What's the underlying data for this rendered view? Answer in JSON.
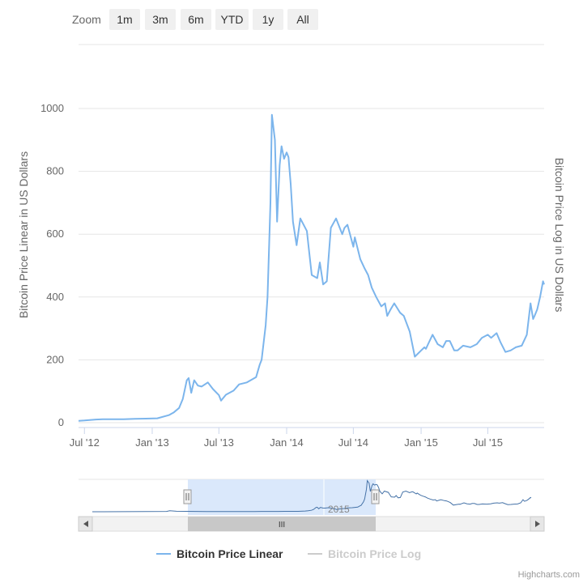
{
  "zoom": {
    "label": "Zoom",
    "buttons": [
      "1m",
      "3m",
      "6m",
      "YTD",
      "1y",
      "All"
    ]
  },
  "credits": "Highcharts.com",
  "colors": {
    "series_linear": "#7cb5ec",
    "series_log": "#cccccc",
    "navigator_mask": "#d6e6fb",
    "grid": "#e6e6e6"
  },
  "chart_data": {
    "type": "line",
    "title": "",
    "xlabel": "",
    "ylabel": "Bitcoin Price Linear in US Dollars",
    "ylabel_right": "Bitcoin Price Log in US Dollars",
    "ylim": [
      0,
      1000
    ],
    "yticks": [
      0,
      200,
      400,
      600,
      800,
      1000
    ],
    "xticks": [
      "Jul '12",
      "Jan '13",
      "Jul '13",
      "Jan '14",
      "Jul '14",
      "Jan '15",
      "Jul '15"
    ],
    "xlim": [
      "2012-06-15",
      "2015-12-01"
    ],
    "grid": true,
    "legend_position": "bottom-center",
    "series": [
      {
        "name": "Bitcoin Price Linear",
        "visible": true,
        "x": [
          "2012-06-15",
          "2012-07-01",
          "2012-08-01",
          "2012-08-20",
          "2012-09-15",
          "2012-10-15",
          "2012-11-15",
          "2012-12-15",
          "2013-01-15",
          "2013-02-15",
          "2013-03-01",
          "2013-03-15",
          "2013-03-25",
          "2013-04-05",
          "2013-04-10",
          "2013-04-17",
          "2013-04-25",
          "2013-05-05",
          "2013-05-15",
          "2013-06-01",
          "2013-06-15",
          "2013-07-01",
          "2013-07-07",
          "2013-07-20",
          "2013-08-10",
          "2013-08-25",
          "2013-09-15",
          "2013-10-10",
          "2013-10-20",
          "2013-10-25",
          "2013-11-05",
          "2013-11-10",
          "2013-11-18",
          "2013-11-22",
          "2013-11-30",
          "2013-12-06",
          "2013-12-13",
          "2013-12-18",
          "2013-12-25",
          "2014-01-01",
          "2014-01-06",
          "2014-01-12",
          "2014-01-18",
          "2014-01-28",
          "2014-02-07",
          "2014-02-25",
          "2014-03-01",
          "2014-03-10",
          "2014-03-25",
          "2014-04-01",
          "2014-04-10",
          "2014-04-20",
          "2014-05-01",
          "2014-05-15",
          "2014-06-01",
          "2014-06-07",
          "2014-06-15",
          "2014-07-01",
          "2014-07-05",
          "2014-07-20",
          "2014-08-01",
          "2014-08-10",
          "2014-08-20",
          "2014-09-01",
          "2014-09-15",
          "2014-09-25",
          "2014-10-01",
          "2014-10-10",
          "2014-10-20",
          "2014-11-05",
          "2014-11-15",
          "2014-12-01",
          "2014-12-15",
          "2015-01-01",
          "2015-01-10",
          "2015-01-14",
          "2015-01-20",
          "2015-02-01",
          "2015-02-15",
          "2015-03-01",
          "2015-03-10",
          "2015-03-20",
          "2015-04-01",
          "2015-04-10",
          "2015-04-25",
          "2015-05-15",
          "2015-06-01",
          "2015-06-15",
          "2015-07-01",
          "2015-07-10",
          "2015-07-25",
          "2015-08-05",
          "2015-08-18",
          "2015-09-01",
          "2015-09-15",
          "2015-10-01",
          "2015-10-15",
          "2015-10-25",
          "2015-11-01",
          "2015-11-05",
          "2015-11-12",
          "2015-11-20",
          "2015-11-28",
          "2015-12-01"
        ],
        "values": [
          6,
          7,
          10,
          11,
          11,
          11,
          12,
          13,
          14,
          24,
          33,
          47,
          75,
          135,
          142,
          95,
          135,
          118,
          115,
          128,
          107,
          88,
          70,
          89,
          102,
          122,
          128,
          145,
          185,
          200,
          310,
          400,
          700,
          980,
          900,
          640,
          820,
          880,
          840,
          860,
          845,
          760,
          640,
          565,
          650,
          610,
          565,
          470,
          460,
          510,
          440,
          450,
          620,
          650,
          600,
          620,
          630,
          560,
          590,
          520,
          490,
          470,
          430,
          400,
          370,
          380,
          340,
          360,
          380,
          350,
          340,
          290,
          210,
          230,
          240,
          235,
          250,
          280,
          250,
          240,
          260,
          260,
          230,
          230,
          245,
          240,
          250,
          270,
          280,
          270,
          285,
          255,
          225,
          230,
          240,
          245,
          280,
          380,
          330,
          340,
          360,
          400,
          450,
          440
        ]
      },
      {
        "name": "Bitcoin Price Log",
        "visible": false,
        "values": []
      }
    ],
    "navigator": {
      "label": "2015",
      "scrollbar_thumb": "III"
    }
  }
}
